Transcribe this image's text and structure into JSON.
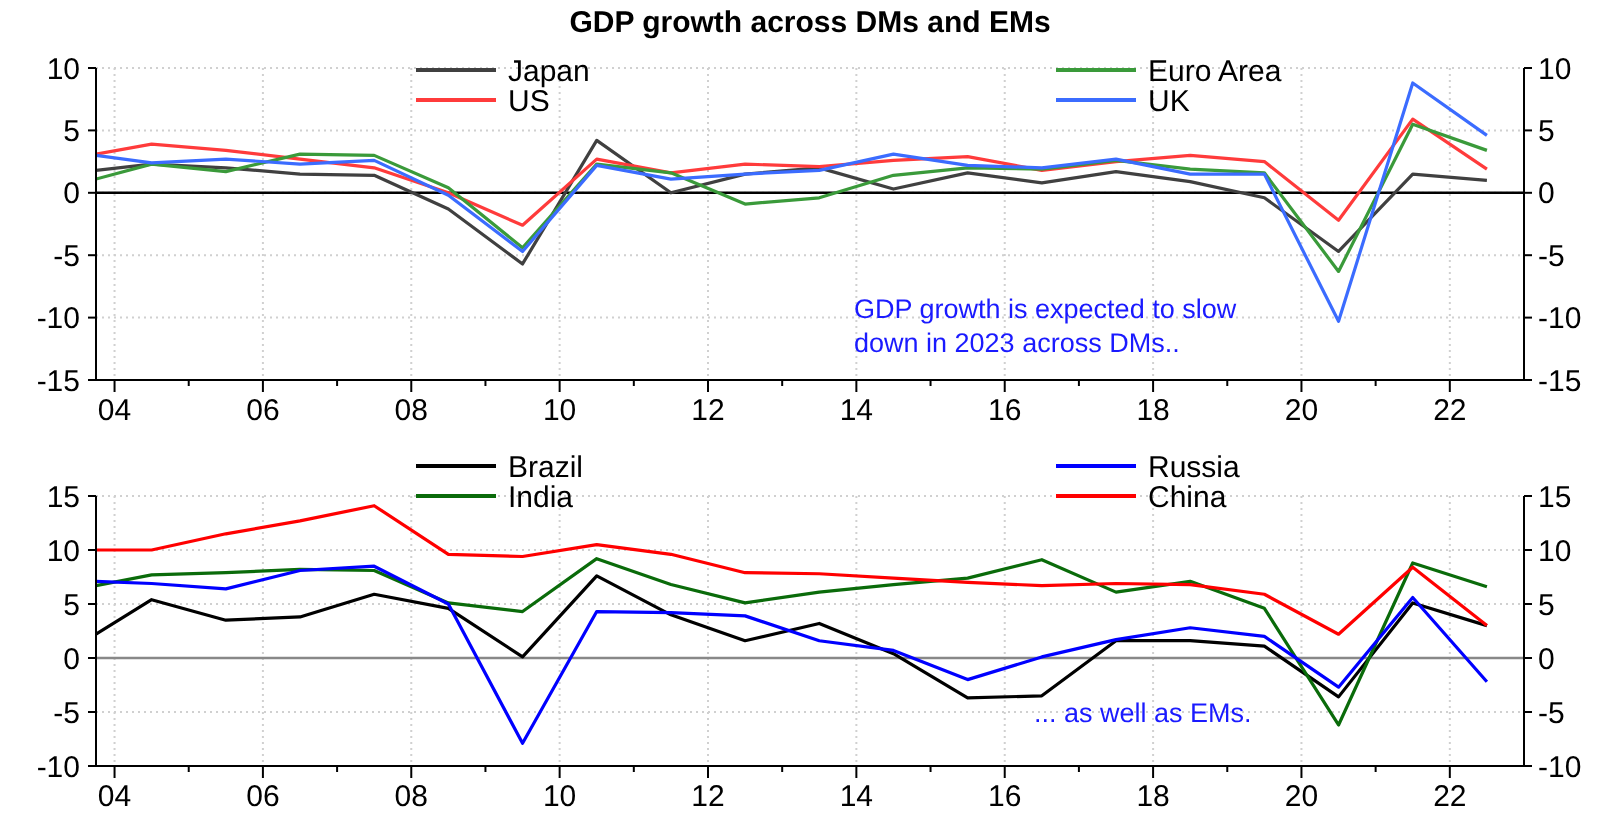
{
  "chart_data": [
    {
      "type": "line",
      "title": "GDP growth across DMs and EMs",
      "x": [
        2003.75,
        2004.5,
        2005.5,
        2006.5,
        2007.5,
        2008.5,
        2009.5,
        2010.5,
        2011.5,
        2012.5,
        2013.5,
        2014.5,
        2015.5,
        2016.5,
        2017.5,
        2018.5,
        2019.5,
        2020.5,
        2021.5,
        2022.5
      ],
      "series": [
        {
          "name": "Japan",
          "color": "#404040",
          "values": [
            1.8,
            2.3,
            2.0,
            1.5,
            1.4,
            -1.3,
            -5.7,
            4.2,
            0.0,
            1.5,
            2.0,
            0.3,
            1.6,
            0.8,
            1.7,
            0.9,
            -0.4,
            -4.7,
            1.5,
            1.0
          ]
        },
        {
          "name": "US",
          "color": "#ff3b3b",
          "values": [
            3.1,
            3.9,
            3.4,
            2.7,
            2.0,
            0.0,
            -2.6,
            2.7,
            1.6,
            2.3,
            2.1,
            2.6,
            2.9,
            1.8,
            2.5,
            3.0,
            2.5,
            -2.2,
            5.9,
            1.9
          ]
        },
        {
          "name": "Euro Area",
          "color": "#3a9a3a",
          "values": [
            1.1,
            2.3,
            1.7,
            3.1,
            3.0,
            0.4,
            -4.4,
            2.3,
            1.6,
            -0.9,
            -0.4,
            1.4,
            2.0,
            1.9,
            2.6,
            1.9,
            1.6,
            -6.3,
            5.5,
            3.4
          ]
        },
        {
          "name": "UK",
          "color": "#3b6cff",
          "values": [
            3.0,
            2.4,
            2.7,
            2.3,
            2.6,
            -0.2,
            -4.7,
            2.2,
            1.1,
            1.5,
            1.8,
            3.1,
            2.2,
            2.0,
            2.7,
            1.5,
            1.5,
            -10.3,
            8.8,
            4.6
          ]
        }
      ],
      "xlim": [
        2003.75,
        2023
      ],
      "xticks": [
        {
          "value": 2004,
          "label": "04"
        },
        {
          "value": 2005,
          "label": null
        },
        {
          "value": 2006,
          "label": "06"
        },
        {
          "value": 2007,
          "label": null
        },
        {
          "value": 2008,
          "label": "08"
        },
        {
          "value": 2009,
          "label": null
        },
        {
          "value": 2010,
          "label": "10"
        },
        {
          "value": 2011,
          "label": null
        },
        {
          "value": 2012,
          "label": "12"
        },
        {
          "value": 2013,
          "label": null
        },
        {
          "value": 2014,
          "label": "14"
        },
        {
          "value": 2015,
          "label": null
        },
        {
          "value": 2016,
          "label": "16"
        },
        {
          "value": 2017,
          "label": null
        },
        {
          "value": 2018,
          "label": "18"
        },
        {
          "value": 2019,
          "label": null
        },
        {
          "value": 2020,
          "label": "20"
        },
        {
          "value": 2021,
          "label": null
        },
        {
          "value": 2022,
          "label": "22"
        }
      ],
      "ylim": [
        -15,
        10
      ],
      "yticks": [
        -15,
        -10,
        -5,
        0,
        5,
        10
      ],
      "y2lim": [
        -15,
        10
      ],
      "y2ticks": [
        -15,
        -10,
        -5,
        0,
        5,
        10
      ],
      "ref_lines": [
        {
          "axis": "y",
          "value": 0,
          "color": "#000000"
        }
      ],
      "annotations": [
        "GDP growth is expected to slow down in 2023 across DMs.."
      ],
      "grid": true,
      "legend": "top",
      "marker": "none",
      "line_style": "solid"
    },
    {
      "type": "line",
      "x": [
        2003.75,
        2004.5,
        2005.5,
        2006.5,
        2007.5,
        2008.5,
        2009.5,
        2010.5,
        2011.5,
        2012.5,
        2013.5,
        2014.5,
        2015.5,
        2016.5,
        2017.5,
        2018.5,
        2019.5,
        2020.5,
        2021.5,
        2022.5
      ],
      "series": [
        {
          "name": "Brazil",
          "color": "#000000",
          "values": [
            2.2,
            5.4,
            3.5,
            3.8,
            5.9,
            4.6,
            0.1,
            7.6,
            4.0,
            1.6,
            3.2,
            0.4,
            -3.7,
            -3.5,
            1.6,
            1.6,
            1.1,
            -3.6,
            5.1,
            3.0
          ]
        },
        {
          "name": "India",
          "color": "#0a6b0a",
          "values": [
            6.7,
            7.7,
            7.9,
            8.2,
            8.1,
            5.1,
            4.3,
            9.2,
            6.8,
            5.1,
            6.1,
            6.8,
            7.4,
            9.1,
            6.1,
            7.1,
            4.6,
            -6.2,
            8.8,
            6.6
          ]
        },
        {
          "name": "Russia",
          "color": "#0000ff",
          "values": [
            7.1,
            6.9,
            6.4,
            8.1,
            8.5,
            5.0,
            -7.9,
            4.3,
            4.2,
            3.9,
            1.6,
            0.7,
            -2.0,
            0.1,
            1.7,
            2.8,
            2.0,
            -2.7,
            5.6,
            -2.2
          ]
        },
        {
          "name": "China",
          "color": "#ff0000",
          "values": [
            10.0,
            10.0,
            11.5,
            12.7,
            14.1,
            9.6,
            9.4,
            10.5,
            9.6,
            7.9,
            7.8,
            7.4,
            7.0,
            6.7,
            6.9,
            6.8,
            5.9,
            2.2,
            8.4,
            3.0
          ]
        }
      ],
      "xlim": [
        2003.75,
        2023
      ],
      "xticks": [
        {
          "value": 2004,
          "label": "04"
        },
        {
          "value": 2005,
          "label": null
        },
        {
          "value": 2006,
          "label": "06"
        },
        {
          "value": 2007,
          "label": null
        },
        {
          "value": 2008,
          "label": "08"
        },
        {
          "value": 2009,
          "label": null
        },
        {
          "value": 2010,
          "label": "10"
        },
        {
          "value": 2011,
          "label": null
        },
        {
          "value": 2012,
          "label": "12"
        },
        {
          "value": 2013,
          "label": null
        },
        {
          "value": 2014,
          "label": "14"
        },
        {
          "value": 2015,
          "label": null
        },
        {
          "value": 2016,
          "label": "16"
        },
        {
          "value": 2017,
          "label": null
        },
        {
          "value": 2018,
          "label": "18"
        },
        {
          "value": 2019,
          "label": null
        },
        {
          "value": 2020,
          "label": "20"
        },
        {
          "value": 2021,
          "label": null
        },
        {
          "value": 2022,
          "label": "22"
        }
      ],
      "ylim": [
        -10,
        15
      ],
      "yticks": [
        -10,
        -5,
        0,
        5,
        10,
        15
      ],
      "y2lim": [
        -10,
        15
      ],
      "y2ticks": [
        -10,
        -5,
        0,
        5,
        10,
        15
      ],
      "ref_lines": [
        {
          "axis": "y",
          "value": 0,
          "color": "#888888"
        }
      ],
      "annotations": [
        "... as well as EMs."
      ],
      "grid": true,
      "legend": "top",
      "marker": "none",
      "line_style": "solid"
    }
  ]
}
